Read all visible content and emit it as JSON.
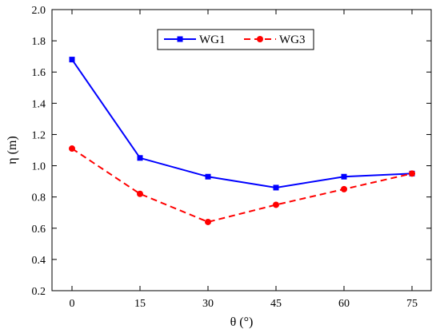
{
  "chart_data": {
    "type": "line",
    "title": "",
    "xlabel": "θ (°)",
    "ylabel": "η (m)",
    "x": [
      0,
      15,
      30,
      45,
      60,
      75
    ],
    "x_tick_labels": [
      "0",
      "15",
      "30",
      "45",
      "60",
      "75"
    ],
    "y_tick_labels": [
      "0.2",
      "0.4",
      "0.6",
      "0.8",
      "1.0",
      "1.2",
      "1.4",
      "1.6",
      "1.8",
      "2.0"
    ],
    "ylim": [
      0.2,
      2.0
    ],
    "grid": false,
    "legend_position": "top-center",
    "series": [
      {
        "name": "WG1",
        "values": [
          1.68,
          1.05,
          0.93,
          0.86,
          0.93,
          0.95
        ],
        "color": "#0000ff",
        "style": "solid",
        "marker": "square"
      },
      {
        "name": "WG3",
        "values": [
          1.11,
          0.82,
          0.64,
          0.75,
          0.85,
          0.95
        ],
        "color": "#ff0000",
        "style": "dashed",
        "marker": "circle"
      }
    ]
  }
}
